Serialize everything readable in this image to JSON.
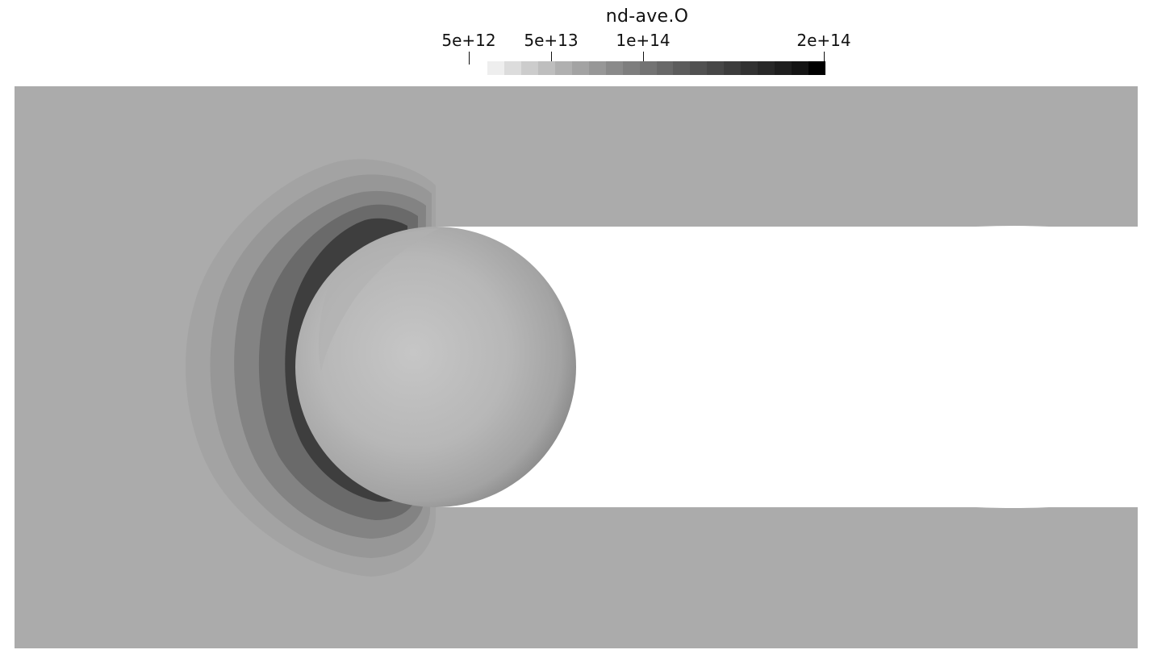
{
  "legend": {
    "title": "nd-ave.O",
    "ticks": [
      {
        "label": "5e+12",
        "value": 5000000000000.0
      },
      {
        "label": "5e+13",
        "value": 50000000000000.0
      },
      {
        "label": "1e+14",
        "value": 100000000000000.0
      },
      {
        "label": "2e+14",
        "value": 200000000000000.0
      }
    ],
    "colormap": "grayscale, light to black with increasing value",
    "swatch_colors": [
      "#eeeeee",
      "#dcdcdc",
      "#cccccc",
      "#bebebe",
      "#b0b0b0",
      "#a3a3a3",
      "#979797",
      "#8a8a8a",
      "#7e7e7e",
      "#737373",
      "#686868",
      "#5c5c5c",
      "#515151",
      "#474747",
      "#3c3c3c",
      "#323232",
      "#282828",
      "#1e1e1e",
      "#141414",
      "#000000"
    ]
  },
  "scene": {
    "domain_color": "#ababab",
    "wake_color": "#ffffff",
    "sphere_color": "#bfbfbf"
  }
}
